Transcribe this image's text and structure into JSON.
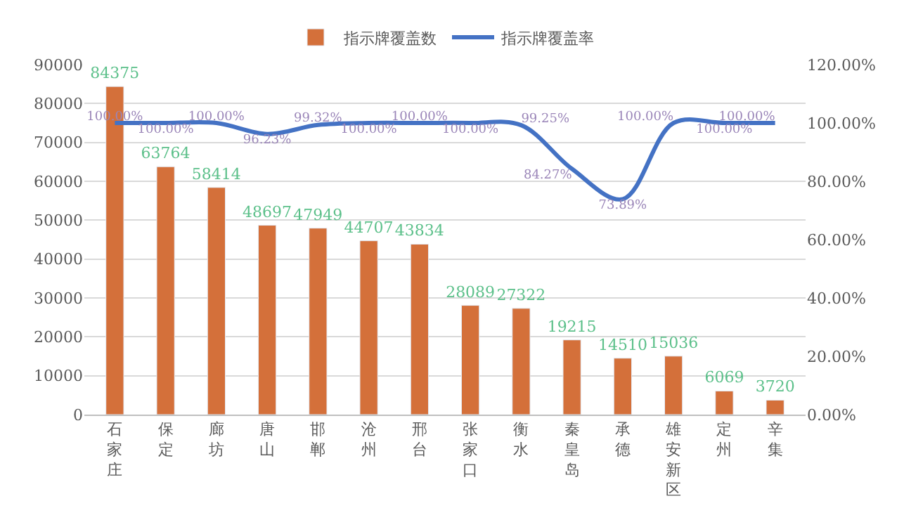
{
  "chart_data": {
    "type": "bar",
    "categories": [
      "石家庄",
      "保定",
      "廊坊",
      "唐山",
      "邯郸",
      "沧州",
      "邢台",
      "张家口",
      "衡水",
      "秦皇岛",
      "承德",
      "雄安新区",
      "定州",
      "辛集"
    ],
    "series": [
      {
        "name": "指示牌覆盖数",
        "color": "#d4703a",
        "values": [
          84375,
          63764,
          58414,
          48697,
          47949,
          44707,
          43834,
          28089,
          27322,
          19215,
          14510,
          15036,
          6069,
          3720
        ],
        "data_labels": true
      },
      {
        "name": "指示牌覆盖率",
        "type": "line",
        "axis": "y2",
        "color": "#4472c4",
        "values": [
          100,
          100,
          100,
          96.23,
          99.32,
          100,
          100,
          100,
          99.25,
          84.27,
          73.89,
          100,
          100,
          100
        ],
        "value_labels": [
          "100.00%",
          "100.00%",
          "100.00%",
          "96.23%",
          "99.32%",
          "100.00%",
          "100.00%",
          "100.00%",
          "99.25%",
          "84.27%",
          "73.89%",
          "100.00%",
          "100.00%",
          "100.00%"
        ]
      }
    ],
    "ylim": [
      0,
      90000
    ],
    "yticks": [
      0,
      10000,
      20000,
      30000,
      40000,
      50000,
      60000,
      70000,
      80000,
      90000
    ],
    "y2lim": [
      0,
      120
    ],
    "y2ticks": [
      {
        "value": 0,
        "label": "0.00%"
      },
      {
        "value": 20,
        "label": "20.00%"
      },
      {
        "value": 40,
        "label": "40.00%"
      },
      {
        "value": 60,
        "label": "60.00%"
      },
      {
        "value": 80,
        "label": "80.00%"
      },
      {
        "value": 100,
        "label": "100.00%"
      },
      {
        "value": 120,
        "label": "120.00%"
      }
    ],
    "grid": "y",
    "legend": "top",
    "line_style": "solid"
  }
}
